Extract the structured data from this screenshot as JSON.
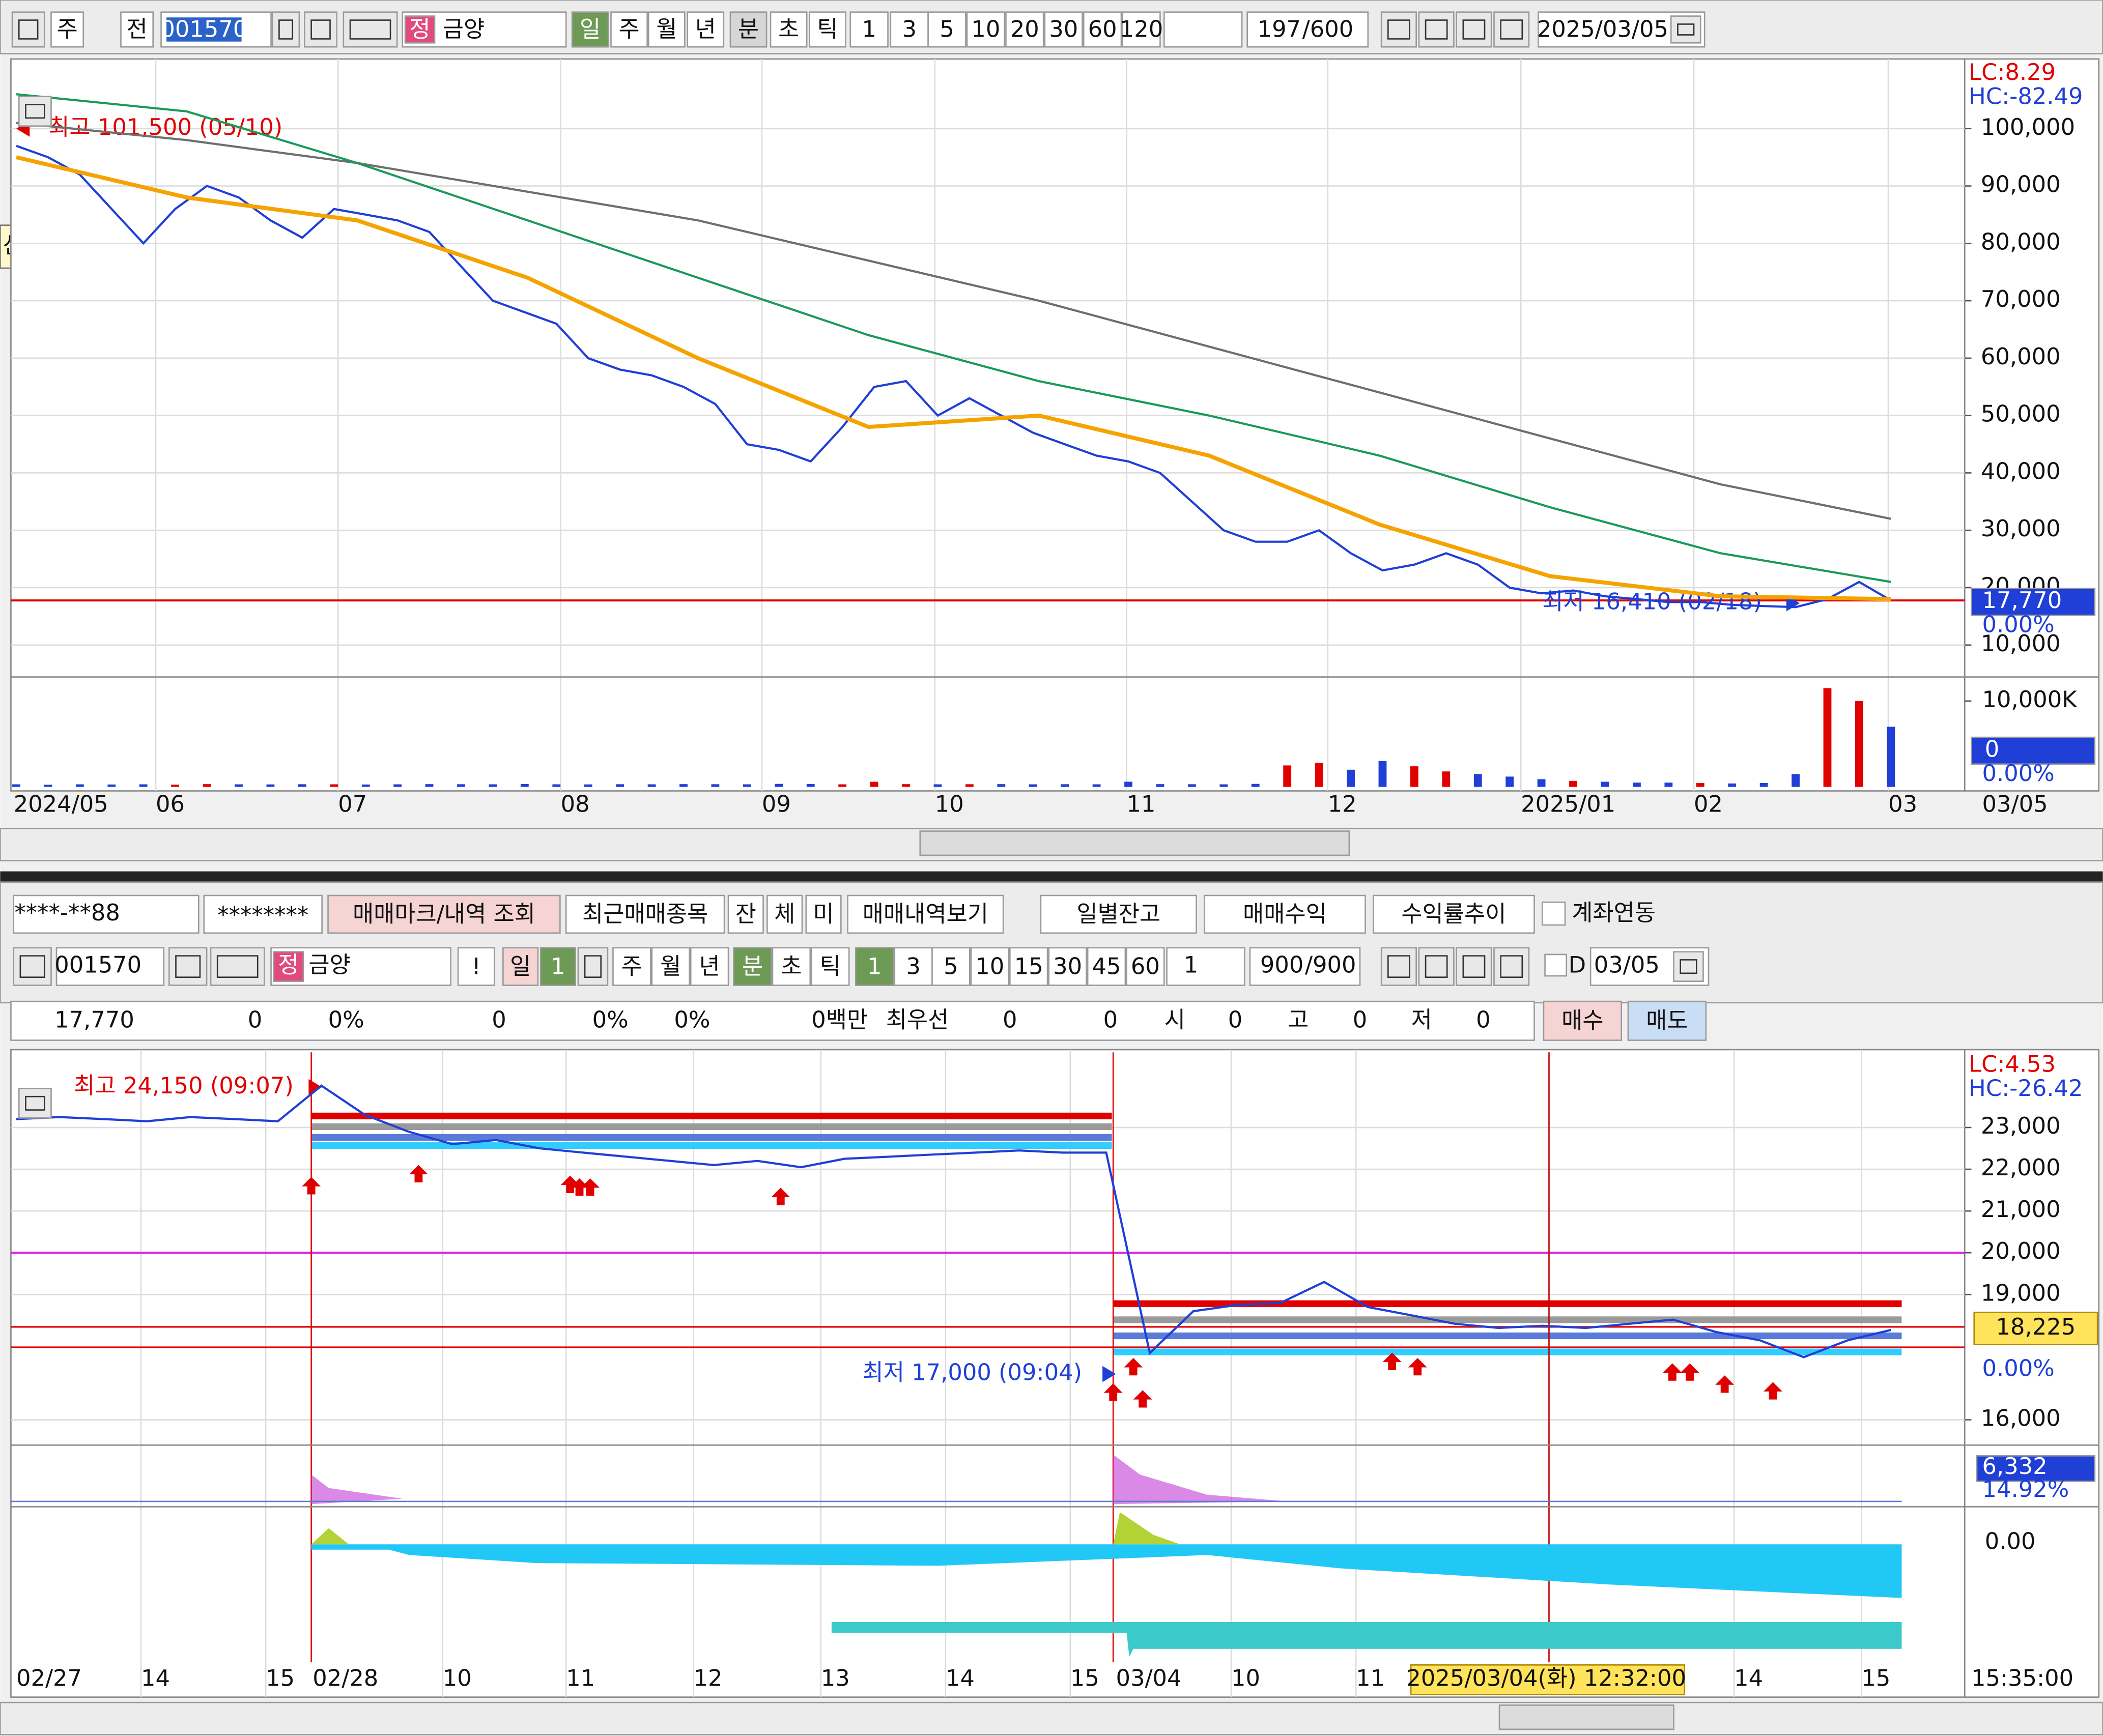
{
  "ui": {
    "top_toolbar": {
      "market": "주",
      "prev": "전",
      "code": "001570",
      "tag": "정",
      "name": "금양",
      "periods": [
        "일",
        "주",
        "월",
        "년",
        "분",
        "초",
        "틱"
      ],
      "intervals": [
        "1",
        "3",
        "5",
        "10",
        "20",
        "30",
        "60",
        "120"
      ],
      "count": "197",
      "count_max": "/600",
      "date": "2025/03/05",
      "side_tab": "산>"
    },
    "account_bar": {
      "account": "****-**88",
      "password": "********",
      "buttons": [
        "매매마크/내역 조회",
        "최근매매종목",
        "잔",
        "체",
        "미",
        "매매내역보기",
        "일별잔고",
        "매매수익",
        "수익률추이"
      ],
      "link": "계좌연동"
    },
    "bottom_toolbar": {
      "code": "001570",
      "tag": "정",
      "name": "금양",
      "alert": "!",
      "period": "일",
      "period_n": "1",
      "periods": [
        "주",
        "월",
        "년",
        "분",
        "초",
        "틱"
      ],
      "intervals": [
        "1",
        "3",
        "5",
        "10",
        "15",
        "30",
        "45",
        "60"
      ],
      "step": "1",
      "count": "900",
      "count_max": "/900",
      "d": "D",
      "date": "03/05"
    },
    "quote_bar": {
      "cells": [
        "17,770",
        "0",
        "0%",
        "0",
        "0%",
        "0%",
        "0백만",
        "최우선",
        "0",
        "0",
        "시",
        "0",
        "고",
        "0",
        "저",
        "0"
      ],
      "buy": "매수",
      "sell": "매도"
    }
  },
  "chart_data": [
    {
      "type": "line",
      "lc": "LC:8.29",
      "hc": "HC:-82.49",
      "high_label": "최고 101,500 (05/10)",
      "low_label": "최저 16,410 (02/18)",
      "last": {
        "value": 17770,
        "label": "17,770"
      },
      "change": "0.00%",
      "x_labels": [
        "2024/05",
        "06",
        "07",
        "08",
        "09",
        "10",
        "11",
        "12",
        "2025/01",
        "02",
        "03",
        "03/05"
      ],
      "ylim": [
        4900,
        111900
      ],
      "yticks": [
        {
          "value": 100000,
          "label": "100,000"
        },
        {
          "value": 90000,
          "label": "90,000"
        },
        {
          "value": 80000,
          "label": "80,000"
        },
        {
          "value": 70000,
          "label": "70,000"
        },
        {
          "value": 60000,
          "label": "60,000"
        },
        {
          "value": 50000,
          "label": "50,000"
        },
        {
          "value": 40000,
          "label": "40,000"
        },
        {
          "value": 30000,
          "label": "30,000"
        },
        {
          "value": 20000,
          "label": "20,000"
        },
        {
          "value": 10000,
          "label": "10,000"
        }
      ],
      "grid": true,
      "series": [
        {
          "color": "#1f3fd6",
          "values": [
            97000,
            95000,
            92000,
            86000,
            80000,
            86000,
            90000,
            88000,
            84000,
            81000,
            86000,
            85000,
            84000,
            82000,
            76000,
            70000,
            68000,
            66000,
            60000,
            58000,
            57000,
            55000,
            52000,
            45000,
            44000,
            42000,
            48000,
            55000,
            56000,
            50000,
            53000,
            50000,
            47000,
            45000,
            43000,
            42000,
            40000,
            35000,
            30000,
            28000,
            28000,
            30000,
            26000,
            23000,
            24000,
            26000,
            24000,
            20000,
            19000,
            19500,
            18500,
            18000,
            17500,
            17500,
            17000,
            16800,
            16600,
            18000,
            21000,
            17770
          ]
        },
        {
          "color": "#6e6e6e",
          "values": [
            101000,
            98000,
            94000,
            89000,
            84000,
            77000,
            70000,
            62000,
            54000,
            46000,
            38000,
            32000
          ]
        },
        {
          "color": "#1a9a5a",
          "values": [
            106000,
            103000,
            94000,
            84000,
            74000,
            64000,
            56000,
            50000,
            43000,
            34000,
            26000,
            21000
          ]
        },
        {
          "color": "#f5a300",
          "values": [
            95000,
            88000,
            84000,
            74000,
            60000,
            48000,
            50000,
            43000,
            31000,
            22000,
            18500,
            18000
          ]
        }
      ],
      "volume": {
        "ylim": [
          0,
          12800
        ],
        "yticks": [
          {
            "value": 10000,
            "label": "10,000K"
          }
        ],
        "zero": "0",
        "change": "0.00%",
        "values": [
          300,
          250,
          300,
          280,
          300,
          260,
          320,
          300,
          290,
          310,
          300,
          280,
          300,
          320,
          310,
          300,
          330,
          300,
          290,
          310,
          300,
          320,
          310,
          300,
          350,
          330,
          300,
          600,
          320,
          300,
          310,
          320,
          300,
          310,
          300,
          600,
          320,
          310,
          300,
          350,
          2500,
          2800,
          2000,
          3000,
          2400,
          1800,
          1500,
          1200,
          900,
          700,
          600,
          500,
          500,
          450,
          400,
          450,
          1500,
          11500,
          10000,
          7000
        ]
      }
    },
    {
      "type": "line",
      "lc": "LC:4.53",
      "hc": "HC:-26.42",
      "high_label": "최고 24,150 (09:07)",
      "low_label": "최저 17,000 (09:04)",
      "ref": {
        "value": 18225,
        "label": "18,225"
      },
      "change": "0.00%",
      "x_labels": [
        "02/27",
        "14",
        "15",
        "02/28",
        "10",
        "11",
        "12",
        "13",
        "14",
        "15",
        "03/04",
        "10",
        "11",
        "2025/03/04(화) 12:32:00",
        "14",
        "15",
        "15:35:00"
      ],
      "ylim": [
        15490,
        24800
      ],
      "yticks": [
        {
          "value": 23000,
          "label": "23,000"
        },
        {
          "value": 22000,
          "label": "22,000"
        },
        {
          "value": 21000,
          "label": "21,000"
        },
        {
          "value": 20000,
          "label": "20,000"
        },
        {
          "value": 19000,
          "label": "19,000"
        },
        {
          "value": 16000,
          "label": "16,000"
        }
      ],
      "grid": true,
      "series": [
        {
          "color": "#1f3fd6",
          "values": [
            23200,
            23250,
            23200,
            23150,
            23250,
            23200,
            23150,
            24000,
            23300,
            22900,
            22600,
            22700,
            22500,
            22400,
            22300,
            22200,
            22100,
            22200,
            22050,
            22250,
            22300,
            22350,
            22400,
            22450,
            22400,
            22400,
            17600,
            18600,
            18750,
            18800,
            19300,
            18700,
            18500,
            18300,
            18200,
            18250,
            18200,
            18300,
            18400,
            18100,
            17900,
            17500,
            17900,
            18150
          ]
        }
      ],
      "volume_labels": {
        "volume": "6,332",
        "change": "14.92%"
      },
      "indicator_label": "0.00"
    }
  ]
}
